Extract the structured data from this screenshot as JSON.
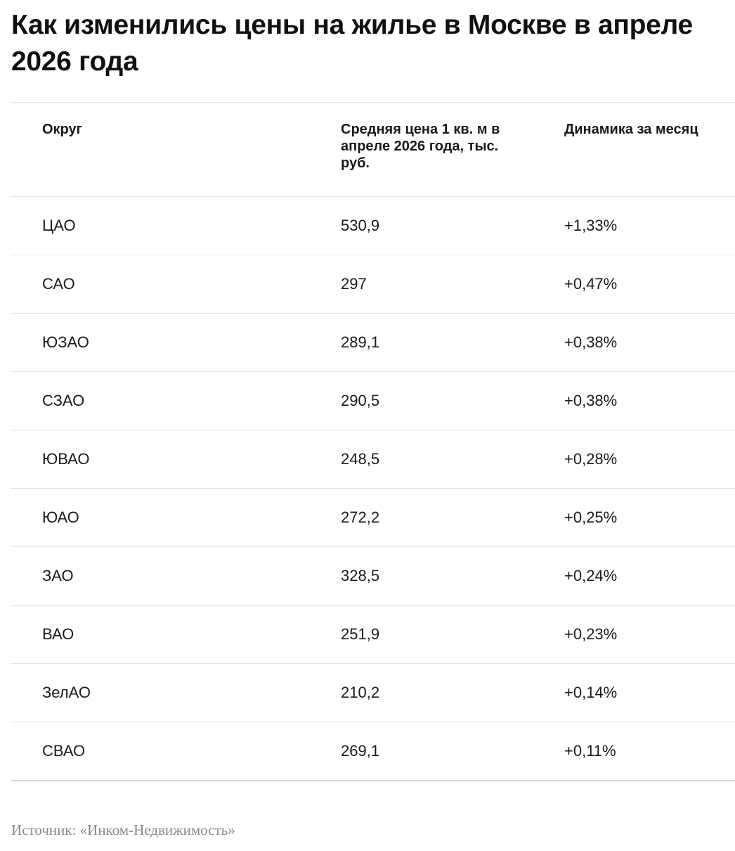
{
  "title": "Как изменились цены на жилье в Москве в апреле 2026 года",
  "table": {
    "columns": [
      "Округ",
      "Средняя цена 1 кв. м в апреле 2026 года, тыс. руб.",
      "Динамика за месяц"
    ],
    "rows": [
      [
        "ЦАО",
        "530,9",
        "+1,33%"
      ],
      [
        "САО",
        "297",
        "+0,47%"
      ],
      [
        "ЮЗАО",
        "289,1",
        "+0,38%"
      ],
      [
        "СЗАО",
        "290,5",
        "+0,38%"
      ],
      [
        "ЮВАО",
        "248,5",
        "+0,28%"
      ],
      [
        "ЮАО",
        "272,2",
        "+0,25%"
      ],
      [
        "ЗАО",
        "328,5",
        "+0,24%"
      ],
      [
        "ВАО",
        "251,9",
        "+0,23%"
      ],
      [
        "ЗелАО",
        "210,2",
        "+0,14%"
      ],
      [
        "СВАО",
        "269,1",
        "+0,11%"
      ]
    ]
  },
  "source": "Источник: «Инком-Недвижимость»"
}
